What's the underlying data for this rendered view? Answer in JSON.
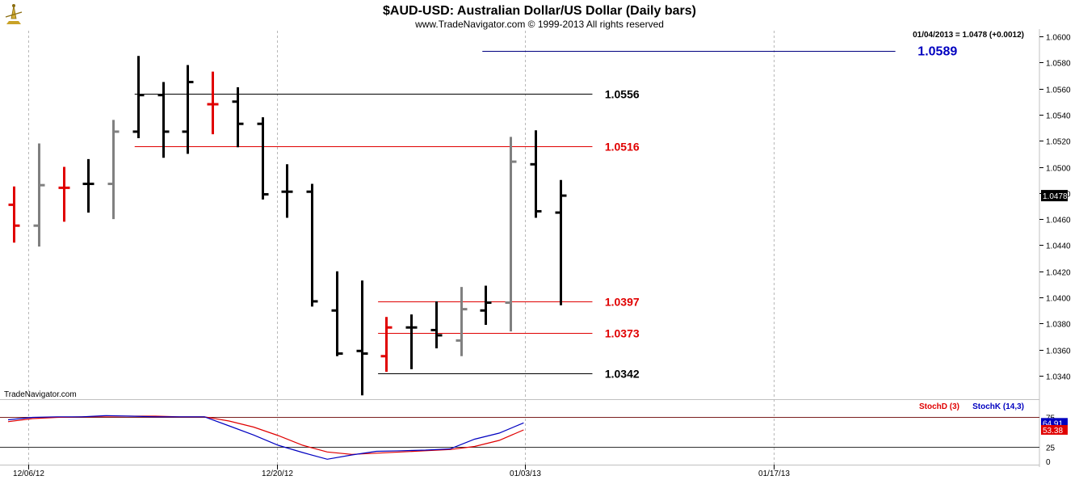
{
  "chart_data": {
    "type": "bar",
    "title": "$AUD-USD:  Australian Dollar/US Dollar  (Daily bars)",
    "subtitle": "www.TradeNavigator.com © 1999-2013 All rights reserved",
    "watermark": "TradeNavigator.com",
    "status_line": "01/04/2013 = 1.0478 (+0.0012)",
    "last_price": "1.0478",
    "ylim": [
      1.0322,
      1.0607
    ],
    "y_ticks": [
      "1.0600",
      "1.0580",
      "1.0560",
      "1.0540",
      "1.0520",
      "1.0500",
      "1.0480",
      "1.0460",
      "1.0440",
      "1.0420",
      "1.0400",
      "1.0380",
      "1.0360",
      "1.0340"
    ],
    "x_tick_labels": [
      "12/06/12",
      "12/20/12",
      "01/03/13",
      "01/17/13"
    ],
    "bars": [
      {
        "o": 1.0471,
        "h": 1.0485,
        "l": 1.0442,
        "c": 1.0455,
        "color": "#e00000"
      },
      {
        "o": 1.0455,
        "h": 1.0518,
        "l": 1.0439,
        "c": 1.0486,
        "color": "#808080"
      },
      {
        "o": 1.0484,
        "h": 1.05,
        "l": 1.0458,
        "c": 1.0484,
        "color": "#e00000"
      },
      {
        "o": 1.0487,
        "h": 1.0506,
        "l": 1.0465,
        "c": 1.0487,
        "color": "#000000"
      },
      {
        "o": 1.0487,
        "h": 1.0536,
        "l": 1.046,
        "c": 1.0527,
        "color": "#808080"
      },
      {
        "o": 1.0527,
        "h": 1.0585,
        "l": 1.0522,
        "c": 1.0555,
        "color": "#000000"
      },
      {
        "o": 1.0555,
        "h": 1.0565,
        "l": 1.0507,
        "c": 1.0527,
        "color": "#000000"
      },
      {
        "o": 1.0527,
        "h": 1.0578,
        "l": 1.051,
        "c": 1.0565,
        "color": "#000000"
      },
      {
        "o": 1.0548,
        "h": 1.0573,
        "l": 1.0525,
        "c": 1.0548,
        "color": "#e00000"
      },
      {
        "o": 1.055,
        "h": 1.0561,
        "l": 1.0515,
        "c": 1.0533,
        "color": "#000000"
      },
      {
        "o": 1.0533,
        "h": 1.0538,
        "l": 1.0475,
        "c": 1.0479,
        "color": "#000000"
      },
      {
        "o": 1.0481,
        "h": 1.0502,
        "l": 1.0461,
        "c": 1.0481,
        "color": "#000000"
      },
      {
        "o": 1.0481,
        "h": 1.0487,
        "l": 1.0393,
        "c": 1.0397,
        "color": "#000000"
      },
      {
        "o": 1.039,
        "h": 1.042,
        "l": 1.0355,
        "c": 1.0357,
        "color": "#000000"
      },
      {
        "o": 1.0359,
        "h": 1.0413,
        "l": 1.0325,
        "c": 1.0357,
        "color": "#000000"
      },
      {
        "o": 1.0355,
        "h": 1.0385,
        "l": 1.0343,
        "c": 1.0377,
        "color": "#e00000"
      },
      {
        "o": 1.0377,
        "h": 1.0387,
        "l": 1.0345,
        "c": 1.0377,
        "color": "#000000"
      },
      {
        "o": 1.0375,
        "h": 1.0397,
        "l": 1.0361,
        "c": 1.0371,
        "color": "#000000"
      },
      {
        "o": 1.0367,
        "h": 1.0408,
        "l": 1.0355,
        "c": 1.0391,
        "color": "#808080"
      },
      {
        "o": 1.039,
        "h": 1.0409,
        "l": 1.0379,
        "c": 1.0396,
        "color": "#000000"
      },
      {
        "o": 1.0396,
        "h": 1.0523,
        "l": 1.0374,
        "c": 1.0504,
        "color": "#808080"
      },
      {
        "o": 1.0502,
        "h": 1.0528,
        "l": 1.0461,
        "c": 1.0466,
        "color": "#000000"
      },
      {
        "o": 1.0465,
        "h": 1.049,
        "l": 1.0394,
        "c": 1.0478,
        "color": "#000000"
      }
    ],
    "level_lines": [
      {
        "value": 1.0589,
        "label": "1.0589",
        "color": "#0000c0",
        "line_color": "#000080",
        "from_bar": 19,
        "to_bar": 35.5,
        "label_at": 36.4
      },
      {
        "value": 1.0556,
        "label": "1.0556",
        "color": "#000000",
        "line_color": "#000000",
        "from_bar": 5,
        "to_bar": 23.3,
        "label_at": 23.8
      },
      {
        "value": 1.0516,
        "label": "1.0516",
        "color": "#e00000",
        "line_color": "#e00000",
        "from_bar": 5,
        "to_bar": 23.3,
        "label_at": 23.8
      },
      {
        "value": 1.0397,
        "label": "1.0397",
        "color": "#e00000",
        "line_color": "#e00000",
        "from_bar": 14.8,
        "to_bar": 23.3,
        "label_at": 23.8
      },
      {
        "value": 1.0373,
        "label": "1.0373",
        "color": "#e00000",
        "line_color": "#e00000",
        "from_bar": 14.8,
        "to_bar": 23.3,
        "label_at": 23.8
      },
      {
        "value": 1.0342,
        "label": "1.0342",
        "color": "#000000",
        "line_color": "#000000",
        "from_bar": 14.8,
        "to_bar": 23.3,
        "label_at": 23.8
      }
    ],
    "stochastic": {
      "stochd_label": "StochD (3)",
      "stochk_label": "StochK (14,3)",
      "stochd_color": "#e00000",
      "stochk_color": "#0000c0",
      "upper_level": 75,
      "upper_label": "75",
      "lower_level": 25,
      "lower_label": "25",
      "zero_label": "0",
      "k_last_label": "64.91",
      "d_last_label": "53.38",
      "stochk": [
        70,
        74,
        75,
        75,
        77,
        76,
        75,
        75,
        75,
        60,
        45,
        28,
        16,
        5,
        12,
        18,
        19,
        20,
        22,
        38,
        48,
        64.91
      ],
      "stochd": [
        67,
        72,
        74,
        75,
        76,
        76,
        76,
        75,
        75,
        68,
        58,
        44,
        28,
        17,
        13,
        15,
        17,
        19,
        21,
        26,
        36,
        53.38
      ]
    }
  }
}
